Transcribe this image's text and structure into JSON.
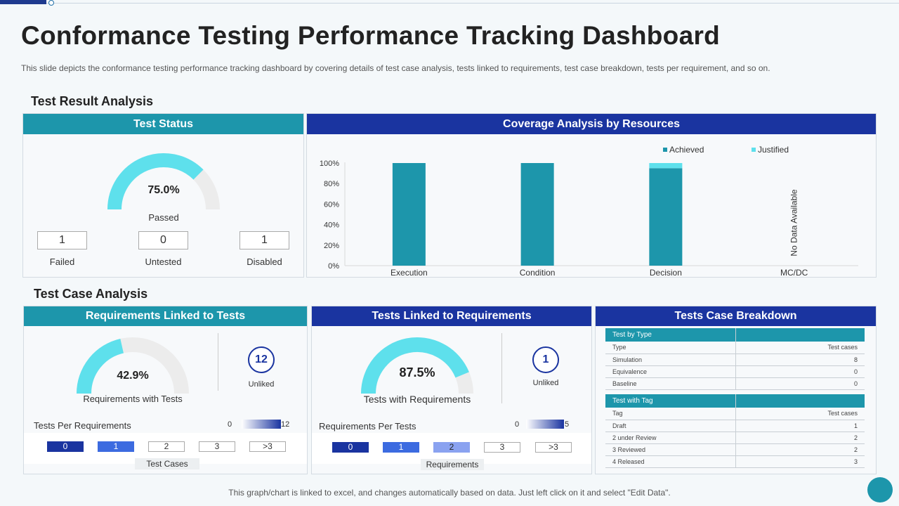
{
  "header": {
    "title": "Conformance Testing Performance Tracking Dashboard",
    "subtitle": "This slide depicts the conformance  testing performance  tracking dashboard  by covering details of test case analysis, tests linked to requirements,  test case breakdown,  tests per requirement,  and so on."
  },
  "sections": {
    "result": "Test Result Analysis",
    "case": "Test Case Analysis"
  },
  "test_status": {
    "title": "Test Status",
    "percent": "75.0%",
    "percent_value": 0.75,
    "label": "Passed",
    "stats": [
      {
        "value": "1",
        "label": "Failed"
      },
      {
        "value": "0",
        "label": "Untested"
      },
      {
        "value": "1",
        "label": "Disabled"
      }
    ]
  },
  "coverage": {
    "title": "Coverage Analysis by Resources",
    "no_data": "No Data Available"
  },
  "chart_data": {
    "type": "bar",
    "stacked": true,
    "categories": [
      "Execution",
      "Condition",
      "Decision",
      "MC/DC"
    ],
    "series": [
      {
        "name": "Achieved",
        "values": [
          100,
          100,
          95,
          null
        ],
        "color": "#1d96ab"
      },
      {
        "name": "Justified",
        "values": [
          0,
          0,
          5,
          null
        ],
        "color": "#5ee0ec"
      }
    ],
    "ylim": [
      0,
      100
    ],
    "yticks": [
      "0%",
      "20%",
      "40%",
      "60%",
      "80%",
      "100%"
    ],
    "legend_position": "top-right",
    "grid": false
  },
  "req_linked": {
    "title": "Requirements Linked to Tests",
    "percent": "42.9%",
    "percent_value": 0.429,
    "label": "Requirements  with Tests",
    "unlinked_value": "12",
    "unlinked_label": "Unliked",
    "per_label": "Tests Per Requirements",
    "scale_min": "0",
    "scale_max": "12",
    "cells": [
      "0",
      "1",
      "2",
      "3",
      ">3"
    ],
    "axis_label": "Test Cases"
  },
  "tests_linked": {
    "title": "Tests Linked to Requirements",
    "percent": "87.5%",
    "percent_value": 0.875,
    "label": "Tests with Requirements",
    "unlinked_value": "1",
    "unlinked_label": "Unliked",
    "per_label": "Requirements  Per Tests",
    "scale_min": "0",
    "scale_max": "5",
    "cells": [
      "0",
      "1",
      "2",
      "3",
      ">3"
    ],
    "axis_label": "Requirements"
  },
  "breakdown": {
    "title": "Tests Case Breakdown",
    "by_type_header": "Test by Type",
    "type_col": "Type",
    "cases_col": "Test cases",
    "type_rows": [
      {
        "name": "Simulation",
        "value": "8"
      },
      {
        "name": "Equivalence",
        "value": "0"
      },
      {
        "name": "Baseline",
        "value": "0"
      }
    ],
    "by_tag_header": "Test with Tag",
    "tag_col": "Tag",
    "tag_rows": [
      {
        "name": "Draft",
        "value": "1"
      },
      {
        "name": "2 under Review",
        "value": "2"
      },
      {
        "name": "3 Reviewed",
        "value": "2"
      },
      {
        "name": "4 Released",
        "value": "3"
      }
    ]
  },
  "colors": {
    "teal": "#1d96ab",
    "navy": "#1a34a0",
    "gauge_fill": "#5ee0ec",
    "gauge_track": "#ececec"
  },
  "footer": "This graph/chart is linked to excel,  and changes automatically based on data. Just left click on it and select \"Edit Data\"."
}
